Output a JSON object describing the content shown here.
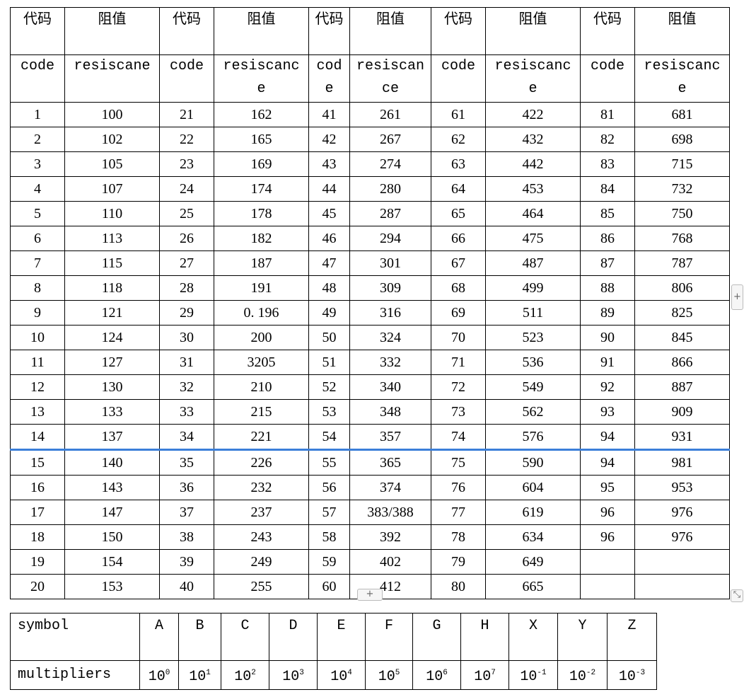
{
  "header_cn": [
    "代码",
    "阻值",
    "代码",
    "阻值",
    "代码",
    "阻值",
    "代码",
    "阻值",
    "代码",
    "阻值"
  ],
  "header_en": [
    "code",
    "resiscane",
    "code",
    "resiscance",
    "code",
    "resiscance",
    "code",
    "resiscance",
    "code",
    "resiscance"
  ],
  "rows": [
    [
      "1",
      "100",
      "21",
      "162",
      "41",
      "261",
      "61",
      "422",
      "81",
      "681"
    ],
    [
      "2",
      "102",
      "22",
      "165",
      "42",
      "267",
      "62",
      "432",
      "82",
      "698"
    ],
    [
      "3",
      "105",
      "23",
      "169",
      "43",
      "274",
      "63",
      "442",
      "83",
      "715"
    ],
    [
      "4",
      "107",
      "24",
      "174",
      "44",
      "280",
      "64",
      "453",
      "84",
      "732"
    ],
    [
      "5",
      "110",
      "25",
      "178",
      "45",
      "287",
      "65",
      "464",
      "85",
      "750"
    ],
    [
      "6",
      "113",
      "26",
      "182",
      "46",
      "294",
      "66",
      "475",
      "86",
      "768"
    ],
    [
      "7",
      "115",
      "27",
      "187",
      "47",
      "301",
      "67",
      "487",
      "87",
      "787"
    ],
    [
      "8",
      "118",
      "28",
      "191",
      "48",
      "309",
      "68",
      "499",
      "88",
      "806"
    ],
    [
      "9",
      "121",
      "29",
      "0. 196",
      "49",
      "316",
      "69",
      "511",
      "89",
      "825"
    ],
    [
      "10",
      "124",
      "30",
      "200",
      "50",
      "324",
      "70",
      "523",
      "90",
      "845"
    ],
    [
      "11",
      "127",
      "31",
      "3205",
      "51",
      "332",
      "71",
      "536",
      "91",
      "866"
    ],
    [
      "12",
      "130",
      "32",
      "210",
      "52",
      "340",
      "72",
      "549",
      "92",
      "887"
    ],
    [
      "13",
      "133",
      "33",
      "215",
      "53",
      "348",
      "73",
      "562",
      "93",
      "909"
    ],
    [
      "14",
      "137",
      "34",
      "221",
      "54",
      "357",
      "74",
      "576",
      "94",
      "931"
    ],
    [
      "15",
      "140",
      "35",
      "226",
      "55",
      "365",
      "75",
      "590",
      "94",
      "981"
    ],
    [
      "16",
      "143",
      "36",
      "232",
      "56",
      "374",
      "76",
      "604",
      "95",
      "953"
    ],
    [
      "17",
      "147",
      "37",
      "237",
      "57",
      "383/388",
      "77",
      "619",
      "96",
      "976"
    ],
    [
      "18",
      "150",
      "38",
      "243",
      "58",
      "392",
      "78",
      "634",
      "96",
      "976"
    ],
    [
      "19",
      "154",
      "39",
      "249",
      "59",
      "402",
      "79",
      "649",
      "",
      ""
    ],
    [
      "20",
      "153",
      "40",
      "255",
      "60",
      "412",
      "80",
      "665",
      "",
      ""
    ]
  ],
  "selection_color": "#3b7fd9",
  "symbols": {
    "label": "symbol",
    "multiplier_label": "multipliers",
    "items": [
      {
        "symbol": "A",
        "base": "10",
        "exp": "0"
      },
      {
        "symbol": "B",
        "base": "10",
        "exp": "1"
      },
      {
        "symbol": "C",
        "base": "10",
        "exp": "2"
      },
      {
        "symbol": "D",
        "base": "10",
        "exp": "3"
      },
      {
        "symbol": "E",
        "base": "10",
        "exp": "4"
      },
      {
        "symbol": "F",
        "base": "10",
        "exp": "5"
      },
      {
        "symbol": "G",
        "base": "10",
        "exp": "6"
      },
      {
        "symbol": "H",
        "base": "10",
        "exp": "7"
      },
      {
        "symbol": "X",
        "base": "10",
        "exp": "-1"
      },
      {
        "symbol": "Y",
        "base": "10",
        "exp": "-2"
      },
      {
        "symbol": "Z",
        "base": "10",
        "exp": "-3"
      }
    ]
  },
  "controls": {
    "add_row": "+",
    "add_col": "+",
    "resize": "⤡"
  }
}
